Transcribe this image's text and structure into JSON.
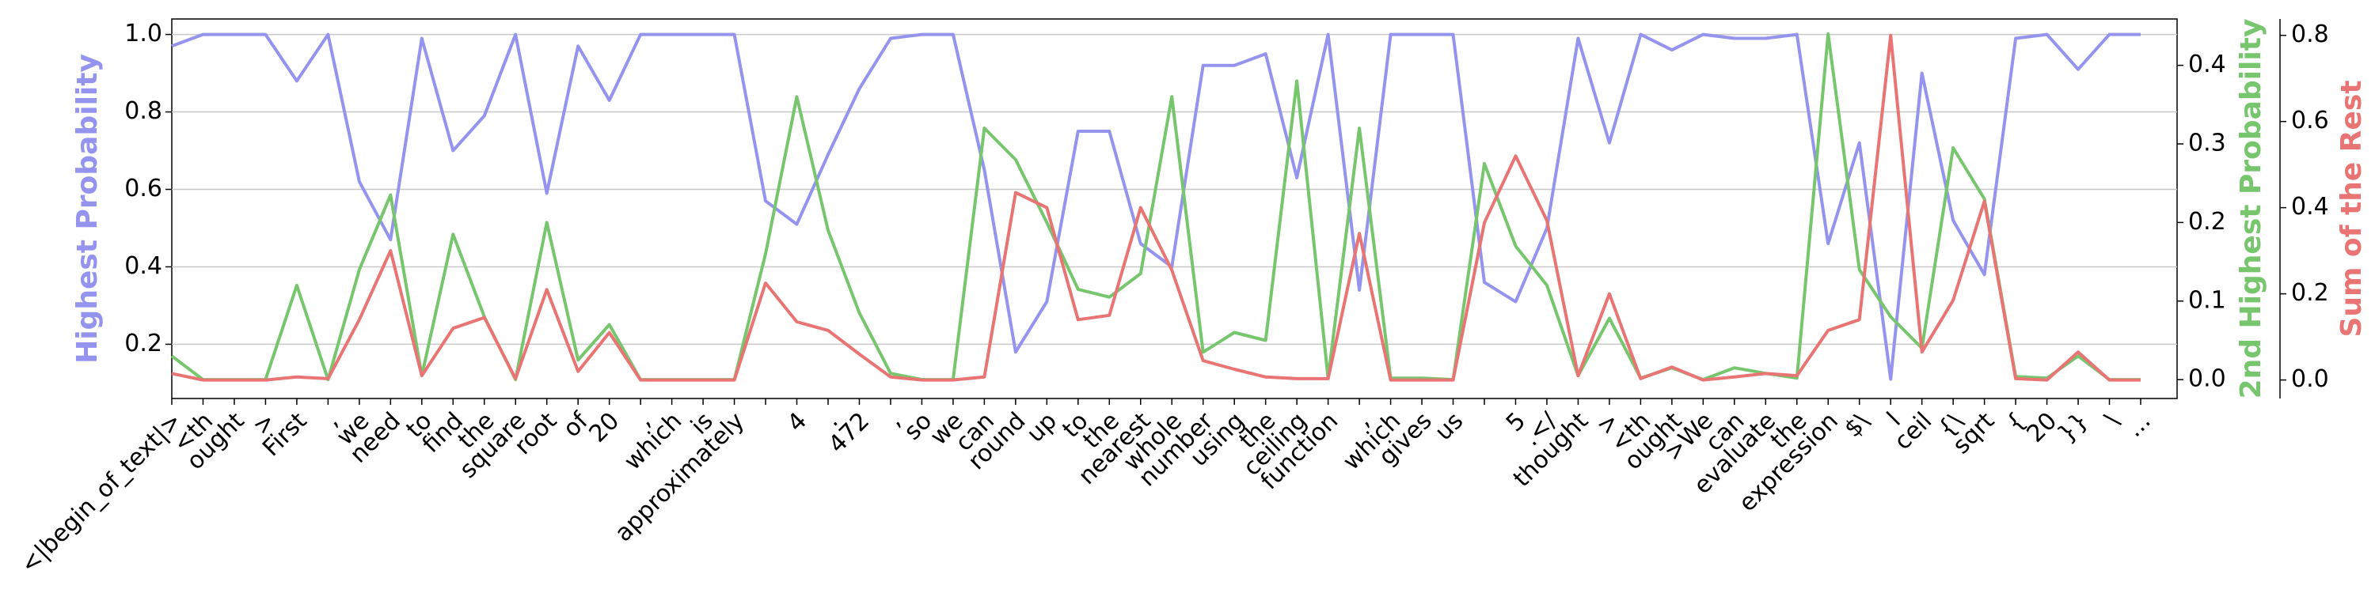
{
  "chart_data": {
    "type": "line",
    "ylabel": "Highest Probability",
    "y2label": "2nd Highest Probability",
    "y3label": "Sum of the Rest",
    "categories": [
      "<|begin_of_text|>",
      "<th",
      "ought",
      ">",
      "First",
      ",",
      "we",
      "need",
      "to",
      "find",
      "the",
      "square",
      "root",
      "of",
      "20",
      ",",
      "which",
      "is",
      "approximately",
      null,
      "4",
      ".",
      "472",
      ",",
      "so",
      "we",
      "can",
      "round",
      "up",
      "to",
      "the",
      "nearest",
      "whole",
      "number",
      "using",
      "the",
      "ceiling",
      "function",
      ",",
      "which",
      "gives",
      "us",
      null,
      "5",
      ".</",
      "thought",
      ">",
      "<th",
      "ought",
      ">We",
      "can",
      "evaluate",
      "the",
      "expression",
      "$\\",
      "l",
      "ceil",
      "{\\",
      "sqrt",
      "{",
      "20",
      "}}",
      "\\",
      "..."
    ],
    "series": [
      {
        "name": "Highest Probability",
        "color": "#9494ee",
        "axis": "y",
        "values": [
          0.97,
          1.0,
          1.0,
          1.0,
          0.88,
          1.0,
          0.62,
          0.47,
          0.99,
          0.7,
          0.79,
          1.0,
          0.59,
          0.97,
          0.83,
          1.0,
          1.0,
          1.0,
          1.0,
          0.57,
          0.51,
          0.69,
          0.86,
          0.99,
          1.0,
          1.0,
          0.65,
          0.18,
          0.31,
          0.75,
          0.75,
          0.46,
          0.4,
          0.92,
          0.92,
          0.95,
          0.63,
          1.0,
          0.34,
          1.0,
          1.0,
          1.0,
          0.36,
          0.31,
          0.5,
          0.99,
          0.72,
          1.0,
          0.96,
          1.0,
          0.99,
          0.99,
          1.0,
          0.46,
          0.72,
          0.11,
          0.9,
          0.52,
          0.38,
          0.99,
          1.0,
          0.91,
          1.0,
          1.0
        ]
      },
      {
        "name": "2nd Highest Probability",
        "color": "#77c66e",
        "axis": "y2",
        "values": [
          0.03,
          0.0,
          0.0,
          0.0,
          0.12,
          0.0,
          0.14,
          0.235,
          0.005,
          0.185,
          0.08,
          0.0,
          0.2,
          0.025,
          0.07,
          0.0,
          0.0,
          0.0,
          0.0,
          0.16,
          0.36,
          0.19,
          0.085,
          0.008,
          0.0,
          0.0,
          0.32,
          0.28,
          0.2,
          0.115,
          0.105,
          0.135,
          0.36,
          0.035,
          0.06,
          0.05,
          0.38,
          0.002,
          0.32,
          0.002,
          0.002,
          0.0,
          0.275,
          0.17,
          0.12,
          0.005,
          0.078,
          0.002,
          0.015,
          0.0,
          0.015,
          0.008,
          0.002,
          0.44,
          0.14,
          0.08,
          0.04,
          0.295,
          0.23,
          0.004,
          0.002,
          0.03,
          0.0,
          0.0
        ]
      },
      {
        "name": "Sum of the Rest",
        "color": "#e87474",
        "axis": "y3",
        "values": [
          0.015,
          0.0,
          0.0,
          0.0,
          0.007,
          0.003,
          0.14,
          0.3,
          0.01,
          0.12,
          0.145,
          0.003,
          0.21,
          0.02,
          0.11,
          0.0,
          0.0,
          0.0,
          0.0,
          0.225,
          0.135,
          0.115,
          0.06,
          0.007,
          0.0,
          0.0,
          0.007,
          0.435,
          0.4,
          0.14,
          0.15,
          0.4,
          0.255,
          0.045,
          0.025,
          0.007,
          0.003,
          0.003,
          0.34,
          0.0,
          0.0,
          0.0,
          0.365,
          0.52,
          0.37,
          0.01,
          0.2,
          0.003,
          0.03,
          0.0,
          0.007,
          0.015,
          0.01,
          0.115,
          0.14,
          0.8,
          0.065,
          0.185,
          0.415,
          0.003,
          0.0,
          0.065,
          0.0,
          0.0
        ]
      }
    ],
    "ylim": [
      0.06,
      1.04
    ],
    "yticks": [
      0.2,
      0.4,
      0.6,
      0.8,
      {
        "value": 1,
        "label": "1.0"
      }
    ],
    "y2lim": [
      -0.024,
      0.459
    ],
    "y2ticks": [
      {
        "value": 0,
        "label": "0.0"
      },
      0.1,
      0.2,
      0.3,
      0.4
    ],
    "y3lim": [
      -0.043,
      0.838
    ],
    "y3ticks": [
      {
        "value": 0,
        "label": "0.0"
      },
      0.2,
      0.4,
      0.6,
      0.8
    ],
    "grid": true
  }
}
